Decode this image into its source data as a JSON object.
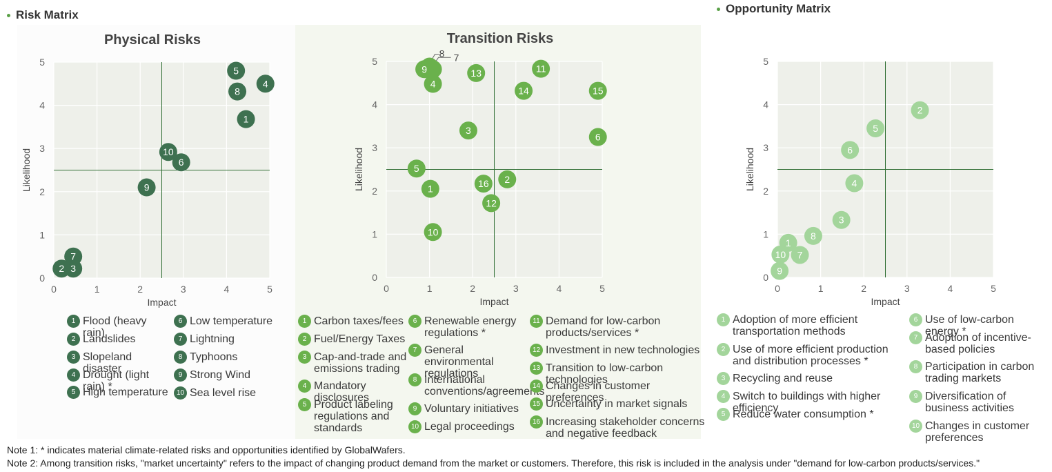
{
  "headers": {
    "risk": "Risk Matrix",
    "opportunity": "Opportunity Matrix"
  },
  "colors": {
    "physical": "#3e7150",
    "transition": "#6ab14c",
    "opportunity": "#a3d59b",
    "plot_bg": "#eef0ea",
    "transition_bg": "#f4f7ef",
    "physical_bg": "#fcfcfc",
    "threshold": "#2f6e33"
  },
  "chart_data": [
    {
      "type": "scatter",
      "title": "Physical Risks",
      "xlabel": "Impact",
      "ylabel": "Likelihood",
      "xlim": [
        0,
        5
      ],
      "ylim": [
        0,
        5
      ],
      "xticks": [
        "0",
        "1",
        "2",
        "3",
        "4",
        "5"
      ],
      "yticks": [
        "0",
        "1",
        "2",
        "3",
        "4",
        "5"
      ],
      "threshold": {
        "x": 2.5,
        "y": 2.5
      },
      "points": [
        {
          "label": "1",
          "x": 4.45,
          "y": 3.68
        },
        {
          "label": "2",
          "x": 0.18,
          "y": 0.22
        },
        {
          "label": "3",
          "x": 0.45,
          "y": 0.22
        },
        {
          "label": "4",
          "x": 4.9,
          "y": 4.5
        },
        {
          "label": "5",
          "x": 4.22,
          "y": 4.8
        },
        {
          "label": "6",
          "x": 2.95,
          "y": 2.68
        },
        {
          "label": "7",
          "x": 0.45,
          "y": 0.5
        },
        {
          "label": "8",
          "x": 4.25,
          "y": 4.32
        },
        {
          "label": "9",
          "x": 2.15,
          "y": 2.1
        },
        {
          "label": "10",
          "x": 2.65,
          "y": 2.92
        }
      ],
      "legend": [
        {
          "num": "1",
          "label": "Flood (heavy rain)"
        },
        {
          "num": "2",
          "label": "Landslides"
        },
        {
          "num": "3",
          "label": "Slopeland disaster"
        },
        {
          "num": "4",
          "label": "Drought (light rain) *"
        },
        {
          "num": "5",
          "label": "High temperature"
        },
        {
          "num": "6",
          "label": "Low temperature"
        },
        {
          "num": "7",
          "label": "Lightning"
        },
        {
          "num": "8",
          "label": "Typhoons"
        },
        {
          "num": "9",
          "label": "Strong Wind"
        },
        {
          "num": "10",
          "label": "Sea level rise"
        }
      ]
    },
    {
      "type": "scatter",
      "title": "Transition Risks",
      "xlabel": "Impact",
      "ylabel": "Likelihood",
      "xlim": [
        0,
        5
      ],
      "ylim": [
        0,
        5
      ],
      "xticks": [
        "0",
        "1",
        "2",
        "3",
        "4",
        "5"
      ],
      "yticks": [
        "0",
        "1",
        "2",
        "3",
        "4",
        "5"
      ],
      "threshold": {
        "x": 2.5,
        "y": 2.5
      },
      "points": [
        {
          "label": "1",
          "x": 1.02,
          "y": 2.05
        },
        {
          "label": "2",
          "x": 2.8,
          "y": 2.27
        },
        {
          "label": "3",
          "x": 1.9,
          "y": 3.4
        },
        {
          "label": "4",
          "x": 1.08,
          "y": 4.48
        },
        {
          "label": "5",
          "x": 0.7,
          "y": 2.52
        },
        {
          "label": "6",
          "x": 4.9,
          "y": 3.25
        },
        {
          "label": "7",
          "x": 1.08,
          "y": 4.82
        },
        {
          "label": "8",
          "x": 1.0,
          "y": 4.88
        },
        {
          "label": "9",
          "x": 0.88,
          "y": 4.82
        },
        {
          "label": "10",
          "x": 1.08,
          "y": 1.05
        },
        {
          "label": "11",
          "x": 3.58,
          "y": 4.83
        },
        {
          "label": "12",
          "x": 2.43,
          "y": 1.72
        },
        {
          "label": "13",
          "x": 2.08,
          "y": 4.73
        },
        {
          "label": "14",
          "x": 3.18,
          "y": 4.32
        },
        {
          "label": "15",
          "x": 4.9,
          "y": 4.32
        },
        {
          "label": "16",
          "x": 2.25,
          "y": 2.17
        }
      ],
      "legend": [
        {
          "num": "1",
          "label": "Carbon taxes/fees"
        },
        {
          "num": "2",
          "label": "Fuel/Energy Taxes"
        },
        {
          "num": "3",
          "label": "Cap-and-trade and emissions trading"
        },
        {
          "num": "4",
          "label": "Mandatory disclosures"
        },
        {
          "num": "5",
          "label": "Product labeling regulations and standards"
        },
        {
          "num": "6",
          "label": "Renewable energy regulations *"
        },
        {
          "num": "7",
          "label": "General environmental regulations"
        },
        {
          "num": "8",
          "label": "International conventions/agreements"
        },
        {
          "num": "9",
          "label": "Voluntary initiatives"
        },
        {
          "num": "10",
          "label": "Legal proceedings"
        },
        {
          "num": "11",
          "label": "Demand for low-carbon products/services *"
        },
        {
          "num": "12",
          "label": "Investment in new technologies"
        },
        {
          "num": "13",
          "label": "Transition to low-carbon technologies"
        },
        {
          "num": "14",
          "label": "Changes in customer preferences"
        },
        {
          "num": "15",
          "label": "Uncertainty in market signals"
        },
        {
          "num": "16",
          "label": "Increasing stakeholder concerns and negative feedback"
        }
      ]
    },
    {
      "type": "scatter",
      "title": "",
      "xlabel": "Impact",
      "ylabel": "Likelihood",
      "xlim": [
        0,
        5
      ],
      "ylim": [
        0,
        5
      ],
      "xticks": [
        "0",
        "1",
        "2",
        "3",
        "4",
        "5"
      ],
      "yticks": [
        "0",
        "1",
        "2",
        "3",
        "4",
        "5"
      ],
      "threshold": {
        "x": 2.5,
        "y": 2.5
      },
      "points": [
        {
          "label": "1",
          "x": 0.25,
          "y": 0.8
        },
        {
          "label": "2",
          "x": 3.3,
          "y": 3.87
        },
        {
          "label": "3",
          "x": 1.48,
          "y": 1.33
        },
        {
          "label": "4",
          "x": 1.78,
          "y": 2.18
        },
        {
          "label": "5",
          "x": 2.27,
          "y": 3.45
        },
        {
          "label": "6",
          "x": 1.68,
          "y": 2.95
        },
        {
          "label": "7",
          "x": 0.52,
          "y": 0.52
        },
        {
          "label": "8",
          "x": 0.83,
          "y": 0.96
        },
        {
          "label": "9",
          "x": 0.05,
          "y": 0.15
        },
        {
          "label": "10",
          "x": 0.07,
          "y": 0.53
        }
      ],
      "legend": [
        {
          "num": "1",
          "label": "Adoption of more efficient transportation methods"
        },
        {
          "num": "2",
          "label": "Use of more efficient production and distribution processes *"
        },
        {
          "num": "3",
          "label": "Recycling and reuse"
        },
        {
          "num": "4",
          "label": "Switch to buildings with higher efficiency"
        },
        {
          "num": "5",
          "label": "Reduce water consumption *"
        },
        {
          "num": "6",
          "label": "Use of low-carbon energy *"
        },
        {
          "num": "7",
          "label": "Adoption of incentive-based policies"
        },
        {
          "num": "8",
          "label": "Participation in carbon trading markets"
        },
        {
          "num": "9",
          "label": "Diversification of business activities"
        },
        {
          "num": "10",
          "label": "Changes in customer preferences"
        }
      ]
    }
  ],
  "notes": [
    "Note 1: * indicates material climate-related risks and opportunities identified by GlobalWafers.",
    "Note 2: Among transition risks, \"market uncertainty\" refers to the impact of changing product demand from the market or customers. Therefore, this risk is included in the analysis under \"demand for low-carbon products/services.\""
  ]
}
